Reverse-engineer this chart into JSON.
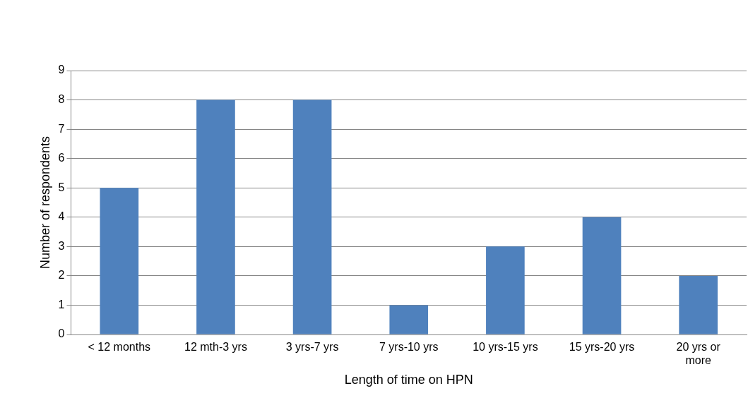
{
  "chart_data": {
    "type": "bar",
    "xlabel": "Length of time on HPN",
    "ylabel": "Number of respondents",
    "categories": [
      "< 12 months",
      "12 mth-3 yrs",
      "3 yrs-7 yrs",
      "7 yrs-10 yrs",
      "10 yrs-15 yrs",
      "15 yrs-20 yrs",
      "20 yrs or more"
    ],
    "values": [
      5,
      8,
      8,
      1,
      3,
      4,
      2
    ],
    "color": "#4f81bd",
    "ylim": [
      0,
      9
    ],
    "yticks": [
      0,
      1,
      2,
      3,
      4,
      5,
      6,
      7,
      8,
      9
    ],
    "grid": "y",
    "legend": false
  }
}
